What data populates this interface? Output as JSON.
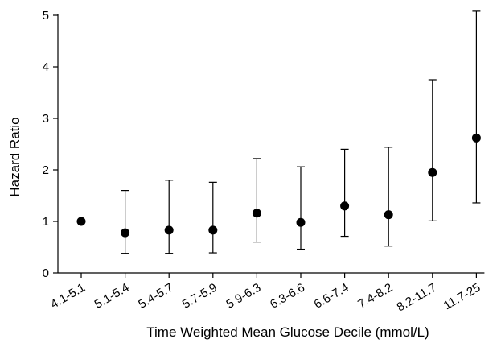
{
  "chart_data": {
    "type": "scatter",
    "xlabel": "Time Weighted Mean Glucose Decile (mmol/L)",
    "ylabel": "Hazard Ratio",
    "ylim": [
      0,
      5
    ],
    "yticks": [
      "0",
      "1",
      "2",
      "3",
      "4",
      "5"
    ],
    "grid": false,
    "legend": "none",
    "categories": [
      "4.1-5.1",
      "5.1-5.4",
      "5.4-5.7",
      "5.7-5.9",
      "5.9-6.3",
      "6.3-6.6",
      "6.6-7.4",
      "7.4-8.2",
      "8.2-11.7",
      "11.7-25"
    ],
    "series": [
      {
        "values": [
          1.0,
          0.78,
          0.83,
          0.83,
          1.16,
          0.98,
          1.3,
          1.13,
          1.95,
          2.62
        ],
        "lower": [
          null,
          0.38,
          0.38,
          0.39,
          0.6,
          0.46,
          0.71,
          0.52,
          1.01,
          1.36
        ],
        "upper": [
          null,
          1.6,
          1.8,
          1.76,
          2.22,
          2.06,
          2.4,
          2.44,
          3.75,
          5.08
        ]
      }
    ],
    "colors": {
      "marker": "#000000",
      "axis": "#000000"
    }
  }
}
